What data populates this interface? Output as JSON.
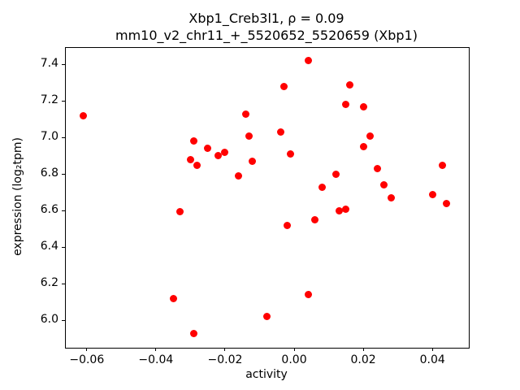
{
  "figure": {
    "background": "#ffffff",
    "frame_color": "#000000"
  },
  "chart_data": {
    "type": "scatter",
    "title_line1": "Xbp1_Creb3l1, ρ = 0.09",
    "title_line2": "mm10_v2_chr11_+_5520652_5520659 (Xbp1)",
    "xlabel": "activity",
    "ylabel": "expression (log₂tpm)",
    "xlim": [
      -0.0663,
      0.0503
    ],
    "ylim": [
      5.855,
      7.495
    ],
    "grid": false,
    "legend": "none",
    "marker_color": "#ff0000",
    "marker_diameter_px": 9,
    "xticks": [
      {
        "v": -0.06,
        "label": "−0.06"
      },
      {
        "v": -0.04,
        "label": "−0.04"
      },
      {
        "v": -0.02,
        "label": "−0.02"
      },
      {
        "v": 0.0,
        "label": "0.00"
      },
      {
        "v": 0.02,
        "label": "0.02"
      },
      {
        "v": 0.04,
        "label": "0.04"
      }
    ],
    "yticks": [
      {
        "v": 6.0,
        "label": "6.0"
      },
      {
        "v": 6.2,
        "label": "6.2"
      },
      {
        "v": 6.4,
        "label": "6.4"
      },
      {
        "v": 6.6,
        "label": "6.6"
      },
      {
        "v": 6.8,
        "label": "6.8"
      },
      {
        "v": 7.0,
        "label": "7.0"
      },
      {
        "v": 7.2,
        "label": "7.2"
      },
      {
        "v": 7.4,
        "label": "7.4"
      }
    ],
    "points": [
      [
        -0.061,
        7.12
      ],
      [
        -0.035,
        6.12
      ],
      [
        -0.033,
        6.595
      ],
      [
        -0.03,
        6.88
      ],
      [
        -0.029,
        6.98
      ],
      [
        -0.028,
        6.85
      ],
      [
        -0.029,
        5.93
      ],
      [
        -0.025,
        6.94
      ],
      [
        -0.022,
        6.9
      ],
      [
        -0.02,
        6.92
      ],
      [
        -0.016,
        6.79
      ],
      [
        -0.014,
        7.13
      ],
      [
        -0.013,
        7.01
      ],
      [
        -0.012,
        6.87
      ],
      [
        -0.008,
        6.02
      ],
      [
        -0.004,
        7.03
      ],
      [
        -0.003,
        7.28
      ],
      [
        -0.002,
        6.52
      ],
      [
        -0.001,
        6.91
      ],
      [
        0.004,
        7.42
      ],
      [
        0.004,
        6.14
      ],
      [
        0.006,
        6.55
      ],
      [
        0.008,
        6.73
      ],
      [
        0.012,
        6.8
      ],
      [
        0.013,
        6.6
      ],
      [
        0.015,
        6.61
      ],
      [
        0.015,
        7.18
      ],
      [
        0.016,
        7.29
      ],
      [
        0.02,
        7.17
      ],
      [
        0.02,
        6.95
      ],
      [
        0.022,
        7.01
      ],
      [
        0.024,
        6.83
      ],
      [
        0.026,
        6.74
      ],
      [
        0.028,
        6.67
      ],
      [
        0.04,
        6.69
      ],
      [
        0.043,
        6.85
      ],
      [
        0.044,
        6.64
      ]
    ]
  }
}
